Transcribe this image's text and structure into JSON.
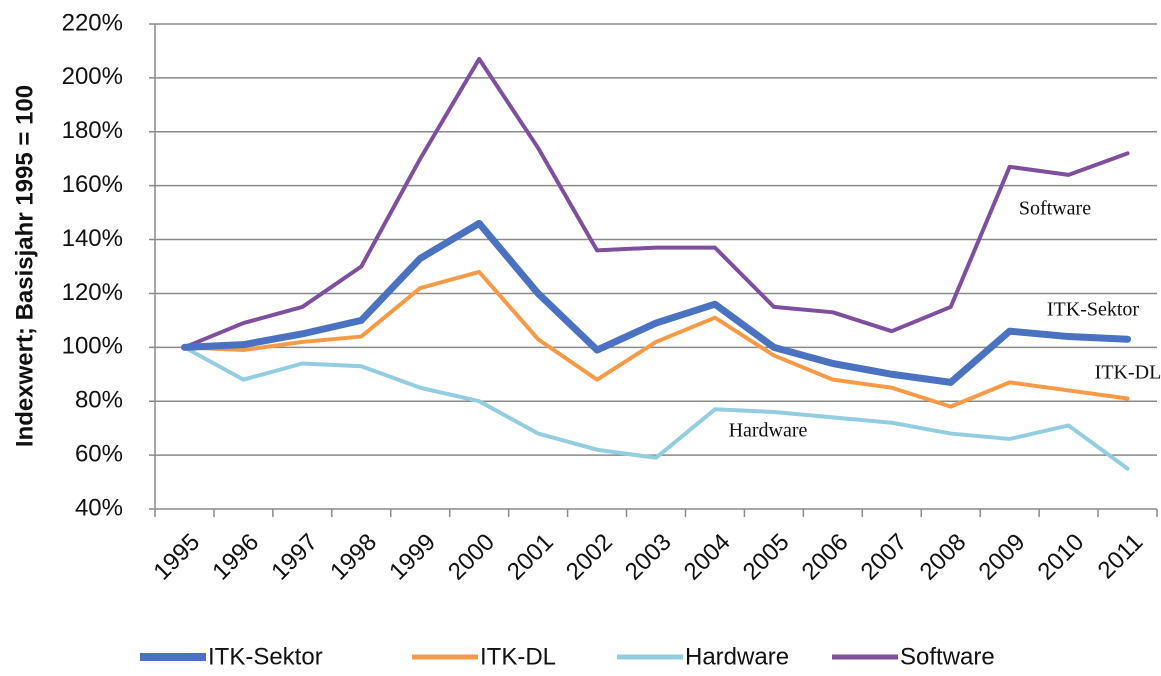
{
  "chart_data": {
    "type": "line",
    "y_label": "Indexwert; Basisjahr 1995 = 100",
    "categories": [
      "1995",
      "1996",
      "1997",
      "1998",
      "1999",
      "2000",
      "2001",
      "2002",
      "2003",
      "2004",
      "2005",
      "2006",
      "2007",
      "2008",
      "2009",
      "2010",
      "2011"
    ],
    "series": [
      {
        "name": "ITK-Sektor",
        "color": "#4a72c0",
        "values": [
          100,
          101,
          105,
          110,
          133,
          146,
          120,
          99,
          109,
          116,
          100,
          94,
          90,
          87,
          106,
          104,
          103
        ]
      },
      {
        "name": "ITK-DL",
        "color": "#f79a46",
        "values": [
          100,
          99,
          102,
          104,
          122,
          128,
          103,
          88,
          102,
          111,
          97,
          88,
          85,
          78,
          87,
          84,
          81
        ]
      },
      {
        "name": "Hardware",
        "color": "#93cde0",
        "values": [
          100,
          88,
          94,
          93,
          85,
          80,
          68,
          62,
          59,
          77,
          76,
          74,
          72,
          68,
          66,
          71,
          55
        ]
      },
      {
        "name": "Software",
        "color": "#7f4f9f",
        "values": [
          100,
          109,
          115,
          130,
          170,
          207,
          174,
          136,
          137,
          137,
          115,
          113,
          106,
          115,
          167,
          164,
          172
        ]
      }
    ],
    "annotations": [
      "Software",
      "ITK-Sektor",
      "ITK-DL",
      "Hardware"
    ],
    "ylim": [
      40,
      220
    ],
    "yticks": [
      {
        "value": 40,
        "label": "40%"
      },
      {
        "value": 60,
        "label": "60%"
      },
      {
        "value": 80,
        "label": "80%"
      },
      {
        "value": 100,
        "label": "100%"
      },
      {
        "value": 120,
        "label": "120%"
      },
      {
        "value": 140,
        "label": "140%"
      },
      {
        "value": 160,
        "label": "160%"
      },
      {
        "value": 180,
        "label": "180%"
      },
      {
        "value": 200,
        "label": "200%"
      },
      {
        "value": 220,
        "label": "220%"
      }
    ],
    "grid": true,
    "legend": "bottom"
  }
}
